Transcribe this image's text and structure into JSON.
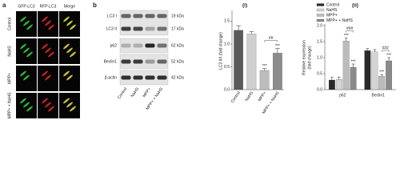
{
  "panel_a": {
    "label": "a",
    "columns": [
      "GFP-LC3",
      "RFP-LC3",
      "Merge"
    ],
    "rows": [
      "Control",
      "NaHS",
      "MPP+",
      "MPP+ + NaHS"
    ]
  },
  "panel_b": {
    "label": "b",
    "proteins": [
      {
        "name": "LC3 I",
        "size": "19 kDa"
      },
      {
        "name": "LC3 II",
        "size": "17 kDa"
      },
      {
        "name": "p62",
        "size": "62 kDa"
      },
      {
        "name": "Beclin1",
        "size": "52 kDa"
      },
      {
        "name": "β-actin",
        "size": "42 kDa"
      }
    ],
    "lanes": [
      "Control",
      "NaHS",
      "MPP+",
      "MPP+ + NaHS"
    ]
  },
  "chart_data": [
    {
      "type": "bar",
      "label": "(i)",
      "y_label": [
        "LC3 II/I (fold change)"
      ],
      "categories": [
        "Control",
        "NaHS",
        "MPP+",
        "MPP+ + NaHS"
      ],
      "values": [
        1.3,
        1.22,
        0.42,
        0.8
      ],
      "errors": [
        0.1,
        0.05,
        0.04,
        0.1
      ],
      "colors": [
        "#5a5a5a",
        "#cfcfcf",
        "#bdbdbd",
        "#8c8c8c"
      ],
      "ylim": [
        0,
        1.7
      ],
      "yticks": [
        {
          "value": 0,
          "label": "0.0"
        },
        0.5,
        {
          "value": 1,
          "label": "1.0"
        },
        1.5
      ],
      "annotations": [
        "***",
        "***",
        "##"
      ]
    },
    {
      "type": "grouped_bar",
      "label": "(ii)",
      "y_label": [
        "Relative expression",
        "(fold change)"
      ],
      "categories": [
        "p62",
        "Beclin1"
      ],
      "series": [
        {
          "name": "Control",
          "color": "#2a2a2a",
          "values": [
            0.3,
            1.22
          ],
          "errors": [
            0.08,
            0.06
          ]
        },
        {
          "name": "NaHS",
          "color": "#d4d4d4",
          "values": [
            0.32,
            1.18
          ],
          "errors": [
            0.07,
            0.07
          ]
        },
        {
          "name": "MPP+",
          "color": "#bcbcbc",
          "values": [
            1.52,
            0.42
          ],
          "errors": [
            0.09,
            0.05
          ]
        },
        {
          "name": "MPP+ + NaHS",
          "color": "#8a8a8a",
          "values": [
            0.7,
            0.9
          ],
          "errors": [
            0.1,
            0.1
          ]
        }
      ],
      "ylim": [
        0,
        2.0
      ],
      "yticks": [
        {
          "value": 0,
          "label": "0.0"
        },
        0.5,
        {
          "value": 1,
          "label": "1.0"
        },
        1.5,
        {
          "value": 2,
          "label": "2.0"
        }
      ],
      "legend": "top-left",
      "annotations": [
        "***",
        "***",
        "###",
        "***",
        "***",
        "###"
      ]
    }
  ]
}
